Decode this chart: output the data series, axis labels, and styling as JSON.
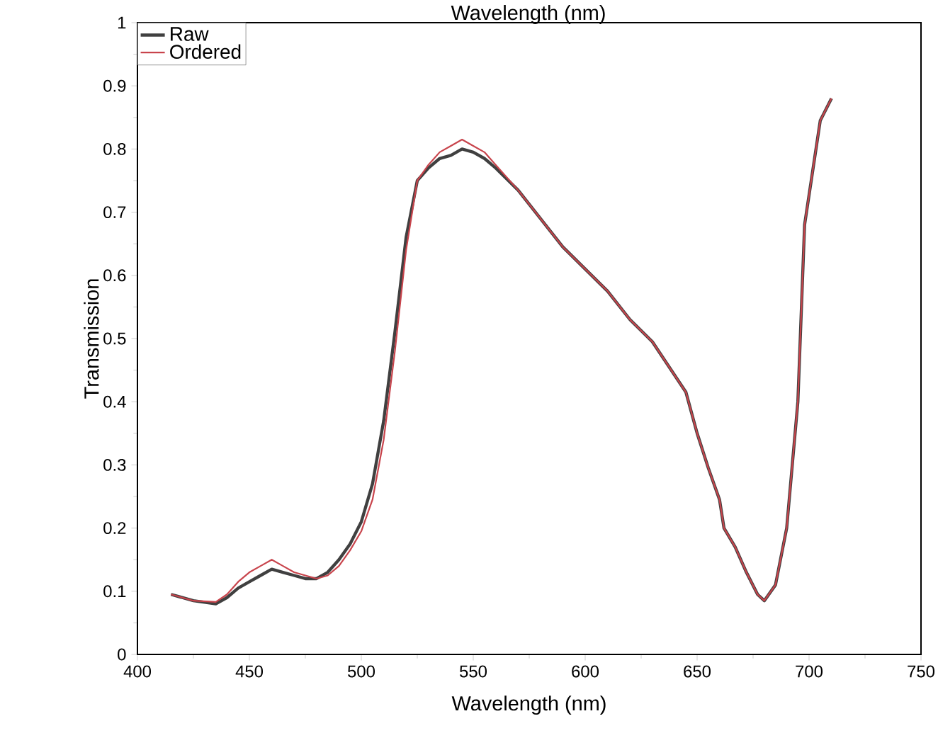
{
  "chart_data": {
    "type": "line",
    "title": "Wavelength (nm)",
    "xlabel": "Wavelength (nm)",
    "ylabel": "Transmission",
    "xlim": [
      400,
      750
    ],
    "xticks": [
      400,
      450,
      500,
      550,
      600,
      650,
      700,
      750
    ],
    "ylim": [
      0,
      1
    ],
    "yticks": [
      0,
      0.1,
      0.2,
      0.3,
      0.4,
      0.5,
      0.6,
      0.7,
      0.8,
      0.9,
      1
    ],
    "legend": "top left",
    "grid": false,
    "marker": "none",
    "line_style": "solid",
    "x": [
      415,
      425,
      435,
      440,
      445,
      450,
      455,
      460,
      465,
      470,
      475,
      480,
      485,
      490,
      495,
      500,
      505,
      510,
      515,
      520,
      525,
      530,
      535,
      540,
      545,
      550,
      555,
      560,
      570,
      580,
      590,
      600,
      610,
      620,
      630,
      645,
      650,
      655,
      660,
      662,
      667,
      672,
      677,
      680,
      685,
      690,
      695,
      698,
      705,
      710
    ],
    "series": [
      {
        "name": "Raw",
        "color": "#404040",
        "values": [
          0.095,
          0.085,
          0.08,
          0.09,
          0.105,
          0.115,
          0.125,
          0.135,
          0.13,
          0.125,
          0.12,
          0.12,
          0.13,
          0.15,
          0.175,
          0.21,
          0.27,
          0.37,
          0.51,
          0.66,
          0.75,
          0.77,
          0.785,
          0.79,
          0.8,
          0.795,
          0.785,
          0.77,
          0.735,
          0.69,
          0.645,
          0.61,
          0.575,
          0.53,
          0.495,
          0.415,
          0.35,
          0.295,
          0.245,
          0.2,
          0.17,
          0.13,
          0.095,
          0.085,
          0.11,
          0.2,
          0.4,
          0.68,
          0.845,
          0.88
        ]
      },
      {
        "name": "Ordered",
        "color": "#c8444c",
        "values": [
          0.095,
          0.085,
          0.083,
          0.095,
          0.115,
          0.13,
          0.14,
          0.15,
          0.14,
          0.13,
          0.125,
          0.12,
          0.125,
          0.14,
          0.165,
          0.195,
          0.245,
          0.34,
          0.48,
          0.64,
          0.75,
          0.775,
          0.795,
          0.805,
          0.815,
          0.805,
          0.795,
          0.775,
          0.735,
          0.69,
          0.645,
          0.61,
          0.575,
          0.53,
          0.495,
          0.415,
          0.35,
          0.295,
          0.245,
          0.2,
          0.17,
          0.13,
          0.095,
          0.085,
          0.11,
          0.2,
          0.4,
          0.68,
          0.845,
          0.88
        ]
      }
    ]
  }
}
